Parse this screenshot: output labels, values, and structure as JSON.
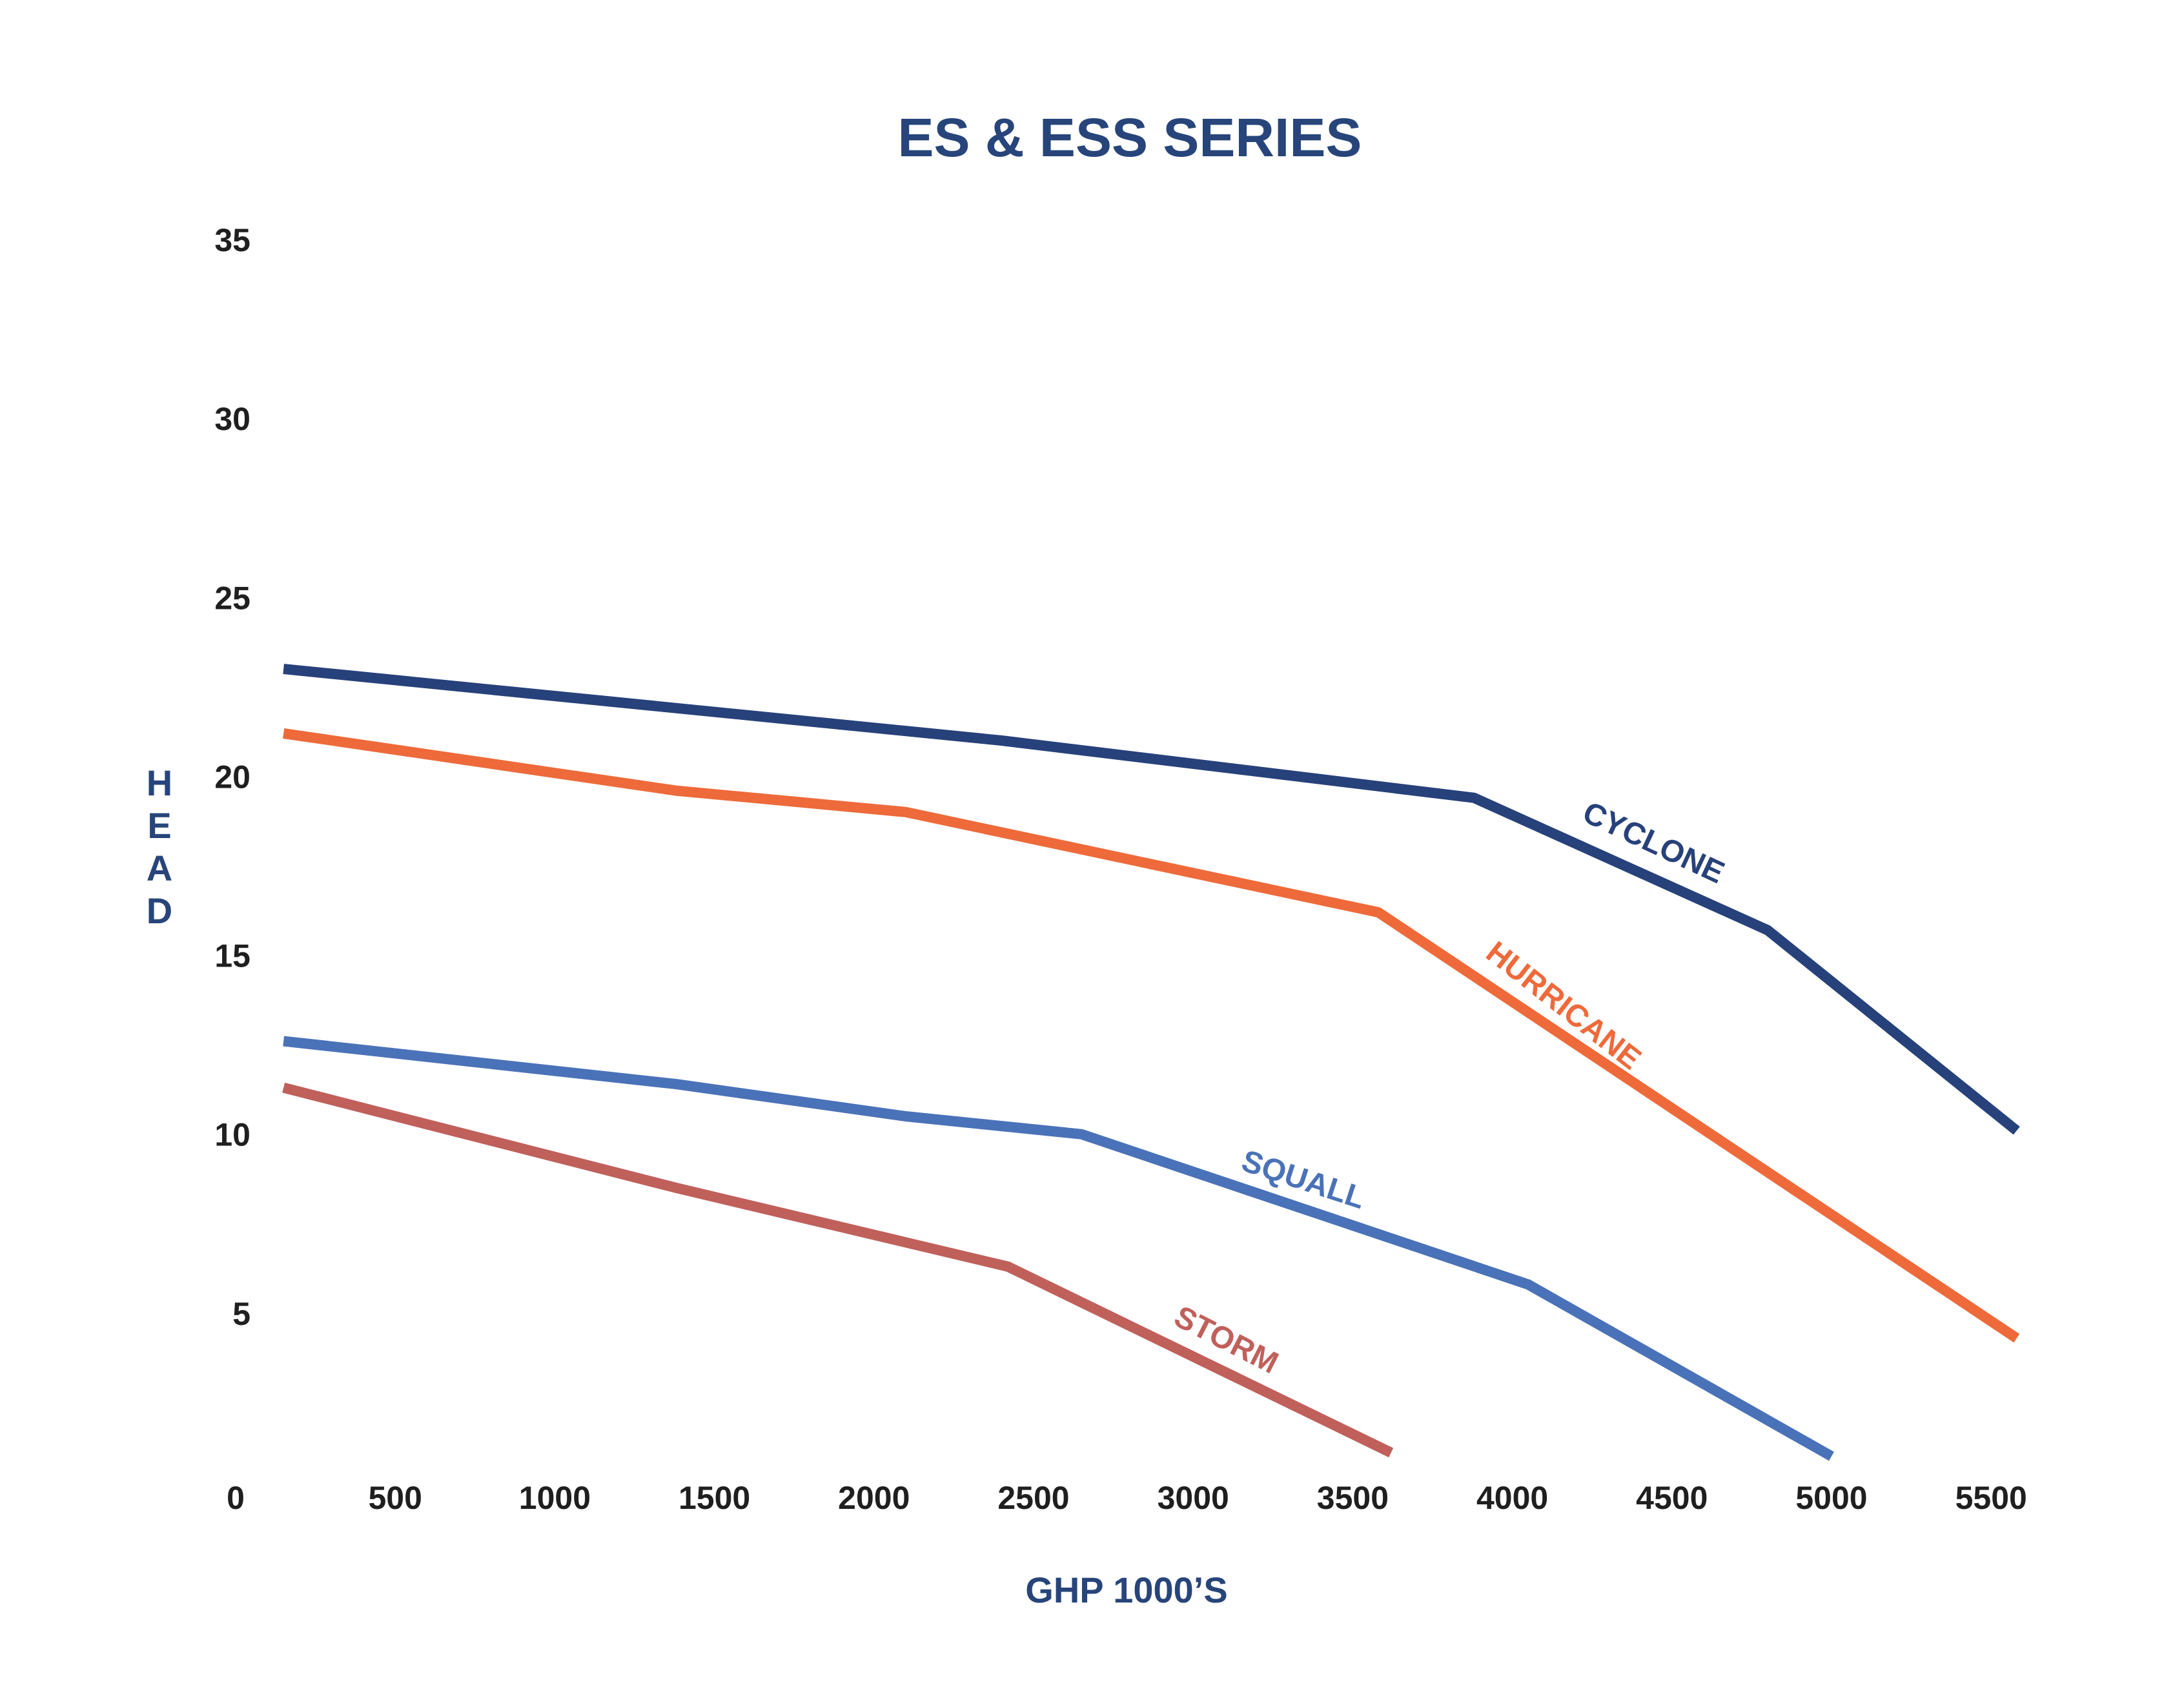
{
  "chart_data": {
    "type": "line",
    "title": "ES & ESS SERIES",
    "xlabel": "GHP 1000’S",
    "ylabel": "HEAD",
    "xlim": [
      0,
      5750
    ],
    "ylim": [
      0,
      35
    ],
    "x_ticks": [
      "0",
      "500",
      "1000",
      "1500",
      "2000",
      "2500",
      "3000",
      "3500",
      "4000",
      "4500",
      "5000",
      "5500"
    ],
    "y_ticks": [
      "5",
      "10",
      "15",
      "20",
      "25",
      "30",
      "35"
    ],
    "grid": false,
    "legend": "none",
    "series": [
      {
        "name": "CYCLONE",
        "color": "#27417a",
        "points": [
          [
            150,
            23.0
          ],
          [
            2400,
            21.0
          ],
          [
            3880,
            19.4
          ],
          [
            4800,
            15.7
          ],
          [
            5580,
            10.1
          ]
        ]
      },
      {
        "name": "HURRICANE",
        "color": "#ee6a3a",
        "points": [
          [
            150,
            21.2
          ],
          [
            1380,
            19.6
          ],
          [
            2100,
            19.0
          ],
          [
            3580,
            16.2
          ],
          [
            5580,
            4.3
          ]
        ]
      },
      {
        "name": "SQUALL",
        "color": "#4a72b8",
        "points": [
          [
            150,
            12.6
          ],
          [
            1380,
            11.4
          ],
          [
            2100,
            10.5
          ],
          [
            2650,
            10.0
          ],
          [
            4050,
            5.8
          ],
          [
            5000,
            1.0
          ]
        ]
      },
      {
        "name": "STORM",
        "color": "#c0605b",
        "points": [
          [
            150,
            11.3
          ],
          [
            1380,
            8.5
          ],
          [
            2420,
            6.3
          ],
          [
            3620,
            1.1
          ]
        ]
      }
    ]
  }
}
